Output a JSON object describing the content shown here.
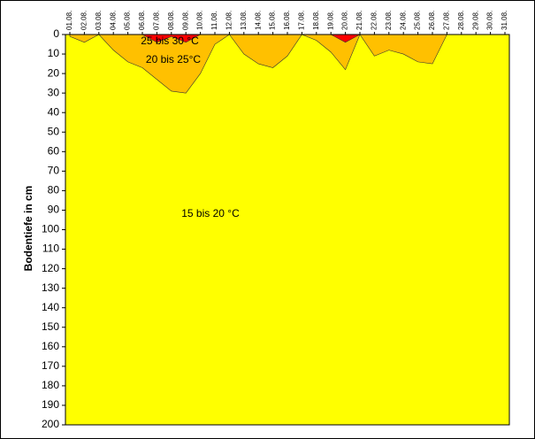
{
  "chart_data": {
    "type": "area",
    "y_label": "Bodentiefe in cm",
    "annotation": "15 bis 20 °C",
    "background_color": "#ffff00",
    "categories": [
      "01.08.",
      "02.08.",
      "03.08.",
      "04.08.",
      "05.08.",
      "06.08.",
      "07.08.",
      "08.08.",
      "09.08.",
      "10.08.",
      "11.08.",
      "12.08.",
      "13.08.",
      "14.08.",
      "15.08.",
      "16.08.",
      "17.08.",
      "18.08.",
      "19.08.",
      "20.08.",
      "21.08.",
      "22.08.",
      "23.08.",
      "24.08.",
      "25.08.",
      "26.08.",
      "27.08.",
      "28.08.",
      "29.08.",
      "30.08.",
      "31.08."
    ],
    "series": [
      {
        "name": "20 bis 25°C",
        "color": "#ffc000",
        "values": [
          1,
          4,
          0,
          8,
          14,
          17,
          23,
          29,
          30,
          20,
          5,
          0,
          10,
          15,
          17,
          11,
          0,
          3,
          9,
          18,
          0,
          11,
          8,
          10,
          14,
          15,
          0,
          0,
          0,
          0,
          0
        ]
      },
      {
        "name": "25 bis 30 °C",
        "color": "#ff0000",
        "values": [
          0,
          0,
          0,
          0,
          0,
          0,
          4,
          1,
          4,
          0,
          0,
          0,
          0,
          0,
          0,
          0,
          0,
          0,
          0,
          4,
          0,
          0,
          0,
          0,
          0,
          0,
          0,
          0,
          0,
          0,
          0
        ]
      }
    ],
    "ylim": [
      0,
      200
    ],
    "y_inverted": true,
    "yticks": [
      0,
      10,
      20,
      30,
      40,
      50,
      60,
      70,
      80,
      90,
      100,
      110,
      120,
      130,
      140,
      150,
      160,
      170,
      180,
      190,
      200
    ]
  }
}
